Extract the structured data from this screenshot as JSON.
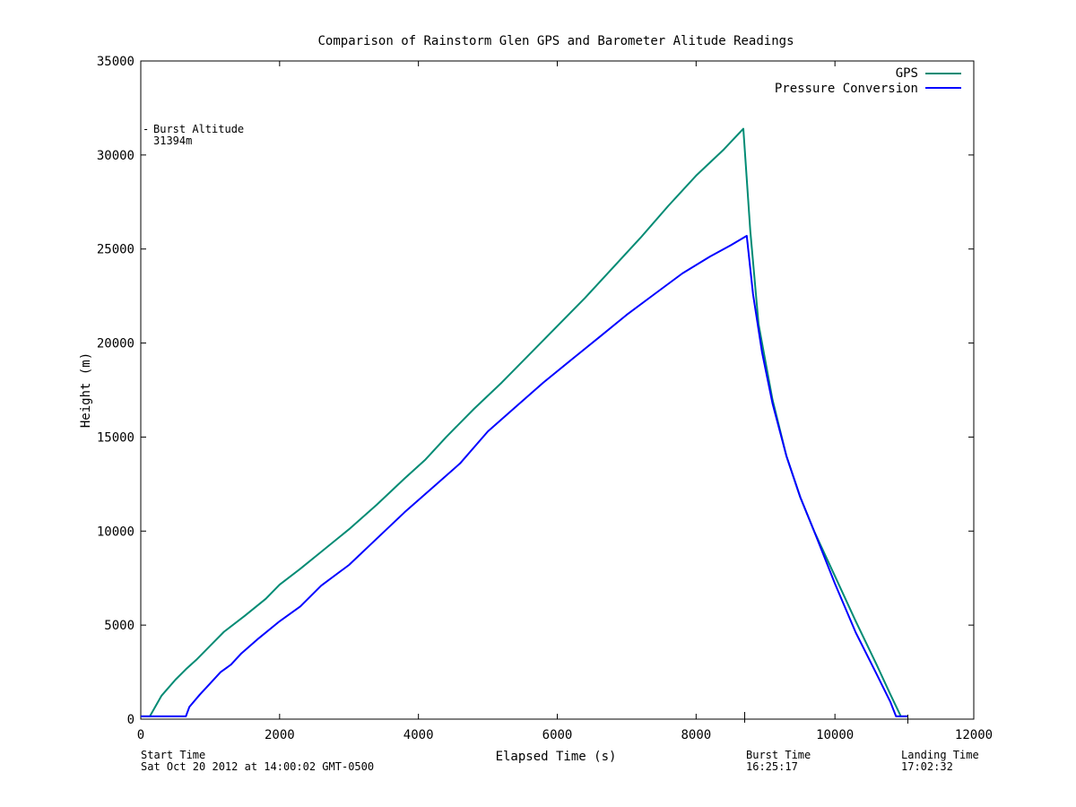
{
  "chart_data": {
    "type": "line",
    "title": "Comparison of Rainstorm Glen GPS and Barometer Alitude Readings",
    "xlabel": "Elapsed Time (s)",
    "ylabel": "Height (m)",
    "xlim": [
      0,
      12000
    ],
    "ylim": [
      0,
      35000
    ],
    "x_ticks": [
      0,
      2000,
      4000,
      6000,
      8000,
      10000,
      12000
    ],
    "y_ticks": [
      0,
      5000,
      10000,
      15000,
      20000,
      25000,
      30000,
      35000
    ],
    "legend_position": "top-right",
    "grid": false,
    "series": [
      {
        "name": "GPS",
        "color": "#008b74",
        "points": [
          [
            0,
            150
          ],
          [
            130,
            150
          ],
          [
            300,
            1250
          ],
          [
            500,
            2100
          ],
          [
            650,
            2650
          ],
          [
            800,
            3150
          ],
          [
            1000,
            3900
          ],
          [
            1200,
            4650
          ],
          [
            1500,
            5500
          ],
          [
            1800,
            6400
          ],
          [
            2000,
            7150
          ],
          [
            2300,
            8000
          ],
          [
            2600,
            8900
          ],
          [
            3000,
            10100
          ],
          [
            3400,
            11400
          ],
          [
            3800,
            12800
          ],
          [
            4100,
            13800
          ],
          [
            4400,
            15000
          ],
          [
            4800,
            16500
          ],
          [
            5200,
            17900
          ],
          [
            5600,
            19400
          ],
          [
            6000,
            20900
          ],
          [
            6400,
            22400
          ],
          [
            6800,
            24000
          ],
          [
            7200,
            25600
          ],
          [
            7600,
            27300
          ],
          [
            8000,
            28900
          ],
          [
            8400,
            30300
          ],
          [
            8680,
            31394
          ],
          [
            8780,
            26000
          ],
          [
            8900,
            21000
          ],
          [
            9100,
            17000
          ],
          [
            9300,
            14000
          ],
          [
            9500,
            11800
          ],
          [
            9700,
            10000
          ],
          [
            10000,
            7600
          ],
          [
            10300,
            5200
          ],
          [
            10600,
            2900
          ],
          [
            10800,
            1300
          ],
          [
            10950,
            150
          ],
          [
            11050,
            150
          ]
        ]
      },
      {
        "name": "Pressure Conversion",
        "color": "#0000ff",
        "points": [
          [
            0,
            150
          ],
          [
            650,
            150
          ],
          [
            700,
            650
          ],
          [
            850,
            1300
          ],
          [
            1000,
            1900
          ],
          [
            1150,
            2500
          ],
          [
            1300,
            2900
          ],
          [
            1450,
            3500
          ],
          [
            1700,
            4300
          ],
          [
            2000,
            5200
          ],
          [
            2300,
            6000
          ],
          [
            2600,
            7100
          ],
          [
            3000,
            8200
          ],
          [
            3400,
            9600
          ],
          [
            3800,
            11000
          ],
          [
            4200,
            12300
          ],
          [
            4600,
            13600
          ],
          [
            5000,
            15300
          ],
          [
            5400,
            16600
          ],
          [
            5800,
            17900
          ],
          [
            6200,
            19100
          ],
          [
            6600,
            20300
          ],
          [
            7000,
            21500
          ],
          [
            7400,
            22600
          ],
          [
            7800,
            23700
          ],
          [
            8200,
            24600
          ],
          [
            8500,
            25200
          ],
          [
            8730,
            25700
          ],
          [
            8820,
            22600
          ],
          [
            8950,
            19500
          ],
          [
            9100,
            16800
          ],
          [
            9300,
            14000
          ],
          [
            9500,
            11800
          ],
          [
            9700,
            10000
          ],
          [
            10000,
            7200
          ],
          [
            10300,
            4600
          ],
          [
            10600,
            2400
          ],
          [
            10800,
            900
          ],
          [
            10880,
            150
          ],
          [
            11050,
            150
          ]
        ]
      }
    ],
    "annotations": {
      "burst_label": "Burst Altitude",
      "burst_value": "31394m",
      "start_label": "Start Time",
      "start_value": "Sat Oct 20 2012 at 14:00:02 GMT-0500",
      "burst_time_label": "Burst Time",
      "burst_time_value": "16:25:17",
      "landing_label": "Landing Time",
      "landing_value": "17:02:32",
      "burst_marker_x": 8700,
      "landing_marker_x": 11050
    }
  }
}
